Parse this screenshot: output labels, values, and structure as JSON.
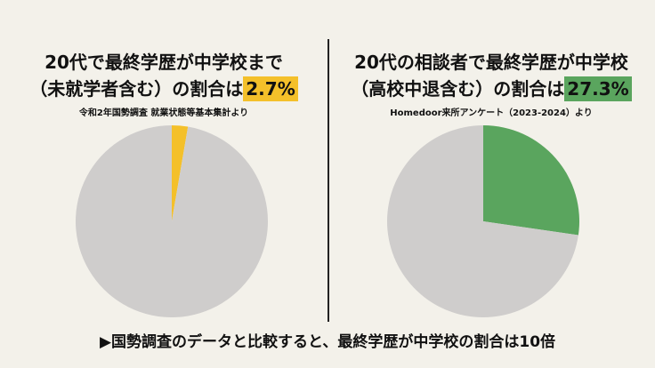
{
  "chart_data": [
    {
      "type": "pie",
      "title_line1": "20代で最終学歴が中学校まで",
      "title_line2": "（未就学者含む）の割合は",
      "highlight": "2.7%",
      "source": "令和2年国勢調査 就業状態等基本集計より",
      "slices": [
        {
          "value": 2.7,
          "color": "#f4c02a"
        },
        {
          "value": 97.3,
          "color": "#cfcdcc"
        }
      ],
      "highlight_color": "#f4c02a"
    },
    {
      "type": "pie",
      "title_line1": "20代の相談者で最終学歴が中学校",
      "title_line2": "（高校中退含む）の割合は",
      "highlight": "27.3%",
      "source": "Homedoor来所アンケート（2023-2024）より",
      "slices": [
        {
          "value": 27.3,
          "color": "#5aa55e"
        },
        {
          "value": 72.7,
          "color": "#cfcdcc"
        }
      ],
      "highlight_color": "#5aa55e"
    }
  ],
  "footer": "▶国勢調査のデータと比較すると、最終学歴が中学校の割合は10倍"
}
